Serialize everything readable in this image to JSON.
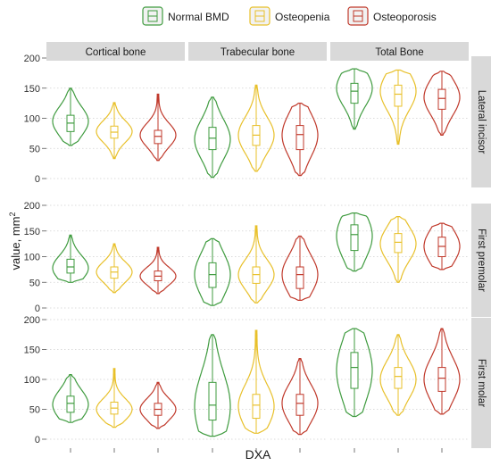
{
  "chart_data": {
    "type": "violin",
    "xlabel": "DXA",
    "ylabel": "value, mm",
    "ylabel_superscript": "2",
    "ylim": [
      0,
      200
    ],
    "yticks": [
      0,
      50,
      100,
      150,
      200
    ],
    "legend_placement": "top",
    "columns": [
      "Cortical bone",
      "Trabecular bone",
      "Total Bone"
    ],
    "rows": [
      "Lateral incisor",
      "First premolar",
      "First molar"
    ],
    "series": [
      {
        "name": "Normal BMD",
        "color": "#3f9b3f"
      },
      {
        "name": "Osteopenia",
        "color": "#e8c02a"
      },
      {
        "name": "Osteoporosis",
        "color": "#c0392b"
      }
    ],
    "panels": [
      {
        "row": 0,
        "col": 0,
        "violins": [
          {
            "min": 55,
            "q1": 78,
            "median": 92,
            "q3": 105,
            "max": 150,
            "mode": 95
          },
          {
            "min": 33,
            "q1": 67,
            "median": 77,
            "q3": 87,
            "max": 126,
            "mode": 78
          },
          {
            "min": 30,
            "q1": 58,
            "median": 70,
            "q3": 80,
            "max": 140,
            "mode": 72
          }
        ]
      },
      {
        "row": 0,
        "col": 1,
        "violins": [
          {
            "min": 2,
            "q1": 48,
            "median": 67,
            "q3": 85,
            "max": 135,
            "mode": 65
          },
          {
            "min": 12,
            "q1": 55,
            "median": 72,
            "q3": 88,
            "max": 155,
            "mode": 72
          },
          {
            "min": 5,
            "q1": 48,
            "median": 73,
            "q3": 88,
            "max": 125,
            "mode": 72
          }
        ]
      },
      {
        "row": 0,
        "col": 2,
        "violins": [
          {
            "min": 82,
            "q1": 125,
            "median": 145,
            "q3": 158,
            "max": 182,
            "mode": 150
          },
          {
            "min": 57,
            "q1": 120,
            "median": 140,
            "q3": 155,
            "max": 180,
            "mode": 145
          },
          {
            "min": 72,
            "q1": 115,
            "median": 133,
            "q3": 148,
            "max": 178,
            "mode": 135
          }
        ]
      },
      {
        "row": 1,
        "col": 0,
        "violins": [
          {
            "min": 50,
            "q1": 68,
            "median": 80,
            "q3": 95,
            "max": 142,
            "mode": 78
          },
          {
            "min": 30,
            "q1": 58,
            "median": 70,
            "q3": 80,
            "max": 125,
            "mode": 70
          },
          {
            "min": 28,
            "q1": 53,
            "median": 62,
            "q3": 72,
            "max": 118,
            "mode": 62
          }
        ]
      },
      {
        "row": 1,
        "col": 1,
        "violins": [
          {
            "min": 5,
            "q1": 40,
            "median": 65,
            "q3": 88,
            "max": 135,
            "mode": 65
          },
          {
            "min": 10,
            "q1": 48,
            "median": 65,
            "q3": 80,
            "max": 160,
            "mode": 65
          },
          {
            "min": 15,
            "q1": 38,
            "median": 65,
            "q3": 80,
            "max": 140,
            "mode": 65
          }
        ]
      },
      {
        "row": 1,
        "col": 2,
        "violins": [
          {
            "min": 72,
            "q1": 112,
            "median": 143,
            "q3": 162,
            "max": 185,
            "mode": 140
          },
          {
            "min": 50,
            "q1": 108,
            "median": 128,
            "q3": 145,
            "max": 178,
            "mode": 125
          },
          {
            "min": 75,
            "q1": 100,
            "median": 120,
            "q3": 138,
            "max": 165,
            "mode": 120
          }
        ]
      },
      {
        "row": 2,
        "col": 0,
        "violins": [
          {
            "min": 28,
            "q1": 45,
            "median": 60,
            "q3": 72,
            "max": 108,
            "mode": 58
          },
          {
            "min": 20,
            "q1": 42,
            "median": 52,
            "q3": 62,
            "max": 118,
            "mode": 50
          },
          {
            "min": 18,
            "q1": 40,
            "median": 50,
            "q3": 60,
            "max": 95,
            "mode": 50
          }
        ]
      },
      {
        "row": 2,
        "col": 1,
        "violins": [
          {
            "min": 5,
            "q1": 32,
            "median": 57,
            "q3": 95,
            "max": 175,
            "mode": 55
          },
          {
            "min": 10,
            "q1": 35,
            "median": 57,
            "q3": 75,
            "max": 182,
            "mode": 55
          },
          {
            "min": 8,
            "q1": 40,
            "median": 60,
            "q3": 75,
            "max": 135,
            "mode": 60
          }
        ]
      },
      {
        "row": 2,
        "col": 2,
        "violins": [
          {
            "min": 38,
            "q1": 85,
            "median": 120,
            "q3": 145,
            "max": 185,
            "mode": 115
          },
          {
            "min": 40,
            "q1": 85,
            "median": 105,
            "q3": 120,
            "max": 175,
            "mode": 100
          },
          {
            "min": 42,
            "q1": 80,
            "median": 102,
            "q3": 120,
            "max": 185,
            "mode": 100
          }
        ]
      }
    ]
  }
}
